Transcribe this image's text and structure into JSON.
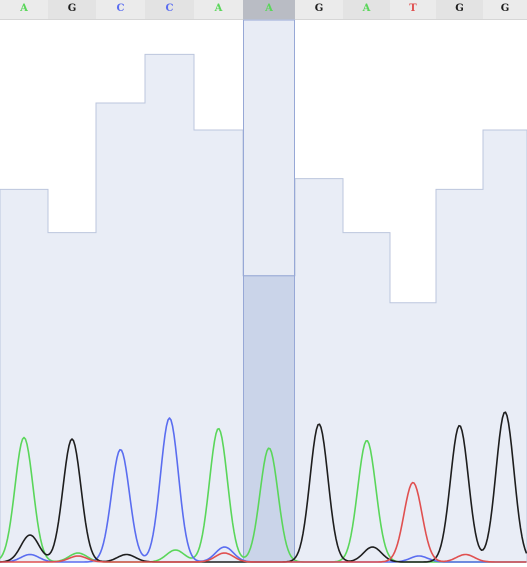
{
  "colors": {
    "A": "#5ad65a",
    "C": "#5a6df0",
    "G": "#1e1e1e",
    "T": "#e05050",
    "quality_fill": "#e9edf6",
    "quality_stroke": "#bcc6dd",
    "selection_fill": "#c9d3e8",
    "selection_stroke": "#97a8d6"
  },
  "selected_index": 5,
  "bases": [
    {
      "letter": "A",
      "quality": 0.69,
      "peak": 0.83
    },
    {
      "letter": "G",
      "quality": 0.61,
      "peak": 0.82
    },
    {
      "letter": "C",
      "quality": 0.85,
      "peak": 0.75
    },
    {
      "letter": "C",
      "quality": 0.94,
      "peak": 0.96
    },
    {
      "letter": "A",
      "quality": 0.8,
      "peak": 0.89
    },
    {
      "letter": "A",
      "quality": 0.53,
      "peak": 0.76
    },
    {
      "letter": "G",
      "quality": 0.71,
      "peak": 0.92
    },
    {
      "letter": "A",
      "quality": 0.61,
      "peak": 0.77
    },
    {
      "letter": "T",
      "quality": 0.48,
      "peak": 0.53
    },
    {
      "letter": "G",
      "quality": 0.69,
      "peak": 0.91
    },
    {
      "letter": "G",
      "quality": 0.8,
      "peak": 1.0
    }
  ]
}
